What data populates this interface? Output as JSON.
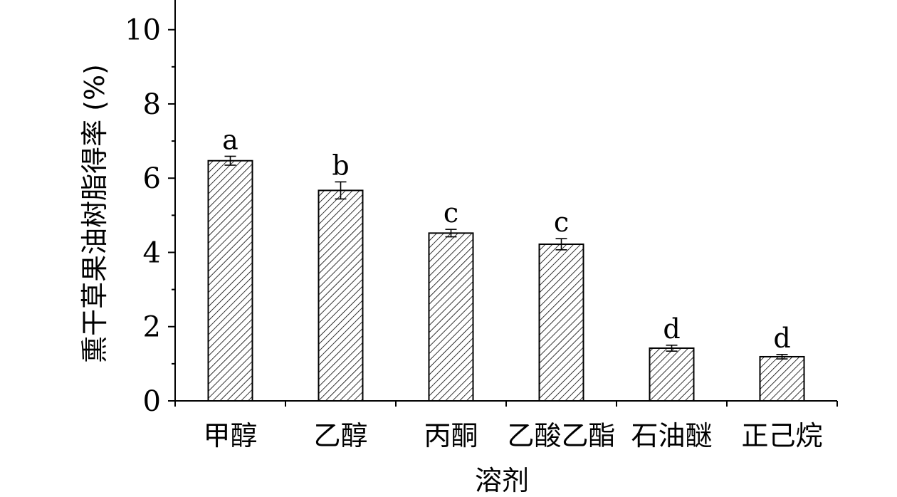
{
  "chart_data": {
    "type": "bar",
    "categories": [
      "甲醇",
      "乙醇",
      "丙酮",
      "乙酸乙酯",
      "石油醚",
      "正己烷"
    ],
    "values": [
      6.47,
      5.67,
      4.52,
      4.22,
      1.42,
      1.19
    ],
    "errors": [
      0.12,
      0.23,
      0.1,
      0.15,
      0.08,
      0.06
    ],
    "significance": [
      "a",
      "b",
      "c",
      "c",
      "d",
      "d"
    ],
    "xlabel": "溶剂",
    "ylabel": "熏干草果油树脂得率 (%)",
    "ylim": [
      0,
      10.8
    ],
    "yticks": [
      0,
      2,
      4,
      6,
      8,
      10
    ],
    "ytick_labels": [
      "0",
      "2",
      "4",
      "6",
      "8",
      "10"
    ],
    "bar_pattern": "diagonal-hatch",
    "grid": false,
    "legend": "none"
  }
}
